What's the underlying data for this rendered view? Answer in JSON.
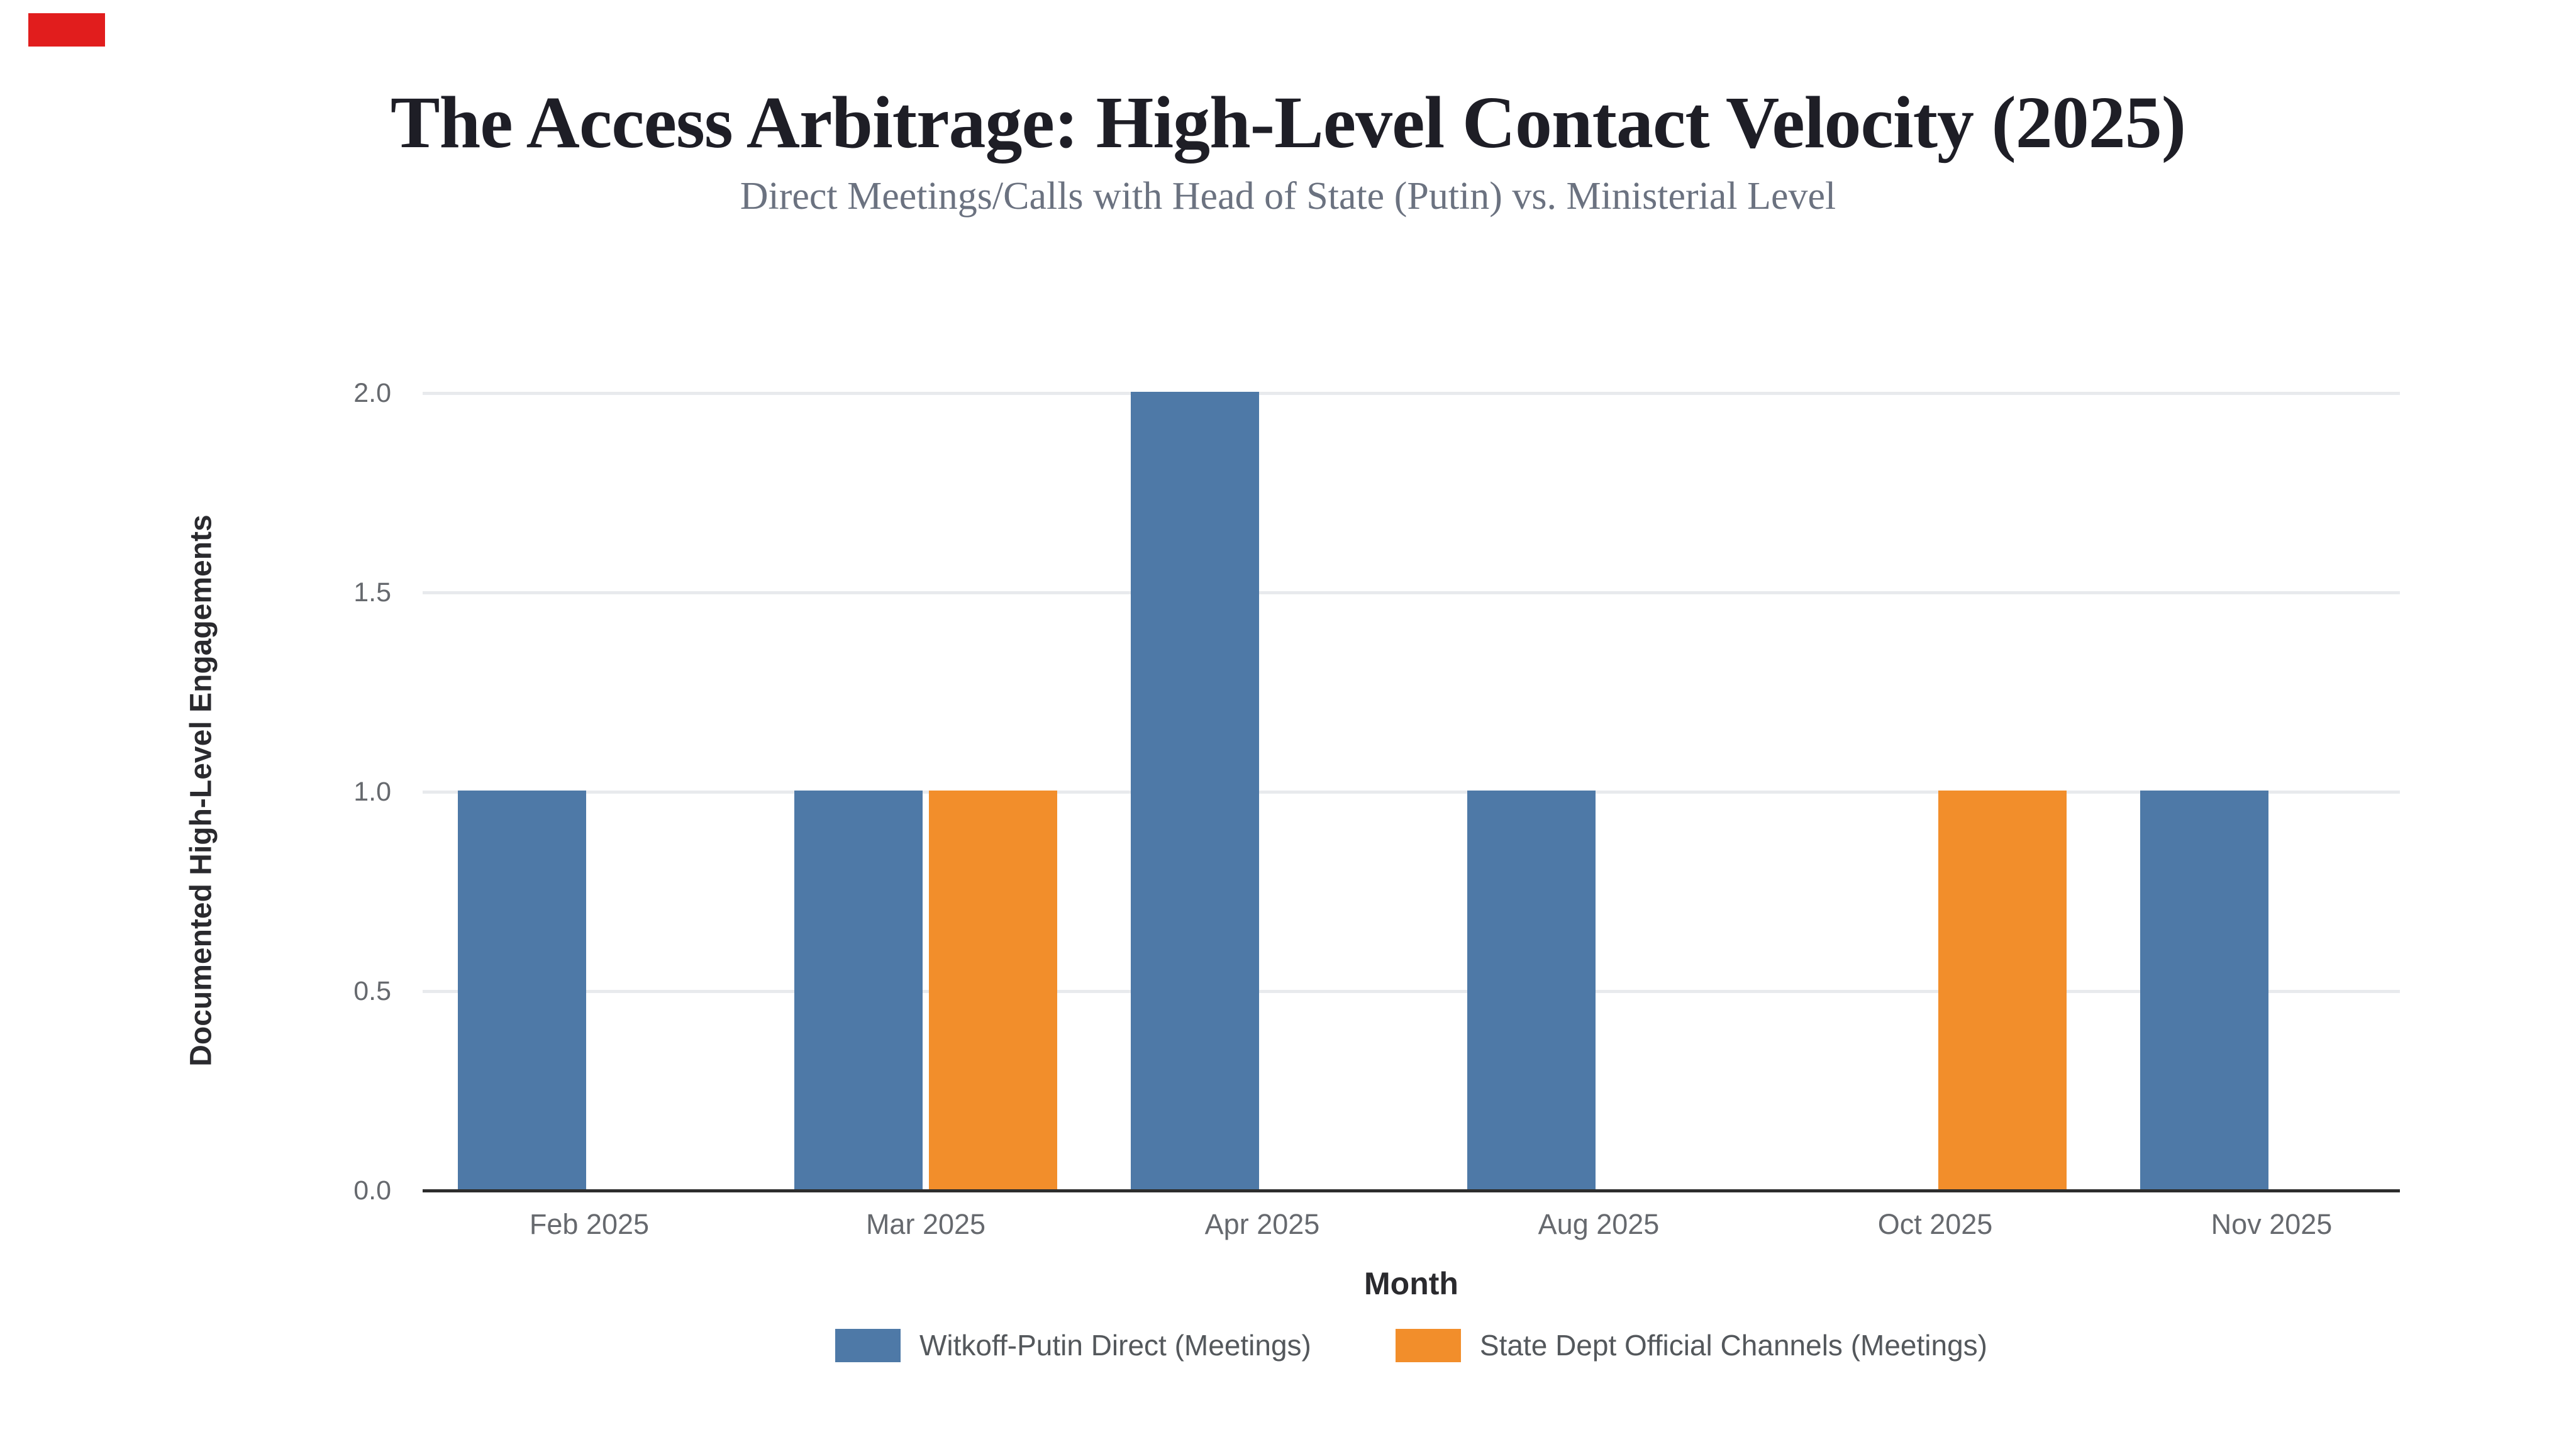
{
  "header": {
    "title": "The Access Arbitrage: High-Level Contact Velocity (2025)",
    "subtitle": "Direct Meetings/Calls with Head of State (Putin) vs. Ministerial Level"
  },
  "colors": {
    "series_blue": "#4E79A7",
    "series_orange": "#F28E2B",
    "gridline": "#e8eaed",
    "axis_line": "#2d2d2d",
    "tick_label": "#66696e",
    "red_marker": "#e11d1d"
  },
  "chart_data": {
    "type": "bar",
    "title": "The Access Arbitrage: High-Level Contact Velocity (2025)",
    "subtitle": "Direct Meetings/Calls with Head of State (Putin) vs. Ministerial Level",
    "xlabel": "Month",
    "ylabel": "Documented High-Level Engagements",
    "categories": [
      "Feb 2025",
      "Mar 2025",
      "Apr 2025",
      "Aug 2025",
      "Oct 2025",
      "Nov 2025"
    ],
    "series": [
      {
        "name": "Witkoff-Putin Direct (Meetings)",
        "color": "#4E79A7",
        "values": [
          1,
          1,
          2,
          1,
          0,
          1
        ]
      },
      {
        "name": "State Dept Official Channels (Meetings)",
        "color": "#F28E2B",
        "values": [
          0,
          1,
          0,
          0,
          1,
          0
        ]
      }
    ],
    "ylim": [
      0,
      2
    ],
    "yticks": [
      0.0,
      0.5,
      1.0,
      1.5,
      2.0
    ],
    "ytick_labels": [
      "0.0",
      "0.5",
      "1.0",
      "1.5",
      "2.0"
    ],
    "grid": true,
    "legend_position": "bottom"
  },
  "legend": {
    "items": [
      {
        "label": "Witkoff-Putin Direct (Meetings)",
        "color": "#4E79A7"
      },
      {
        "label": "State Dept Official Channels (Meetings)",
        "color": "#F28E2B"
      }
    ]
  }
}
